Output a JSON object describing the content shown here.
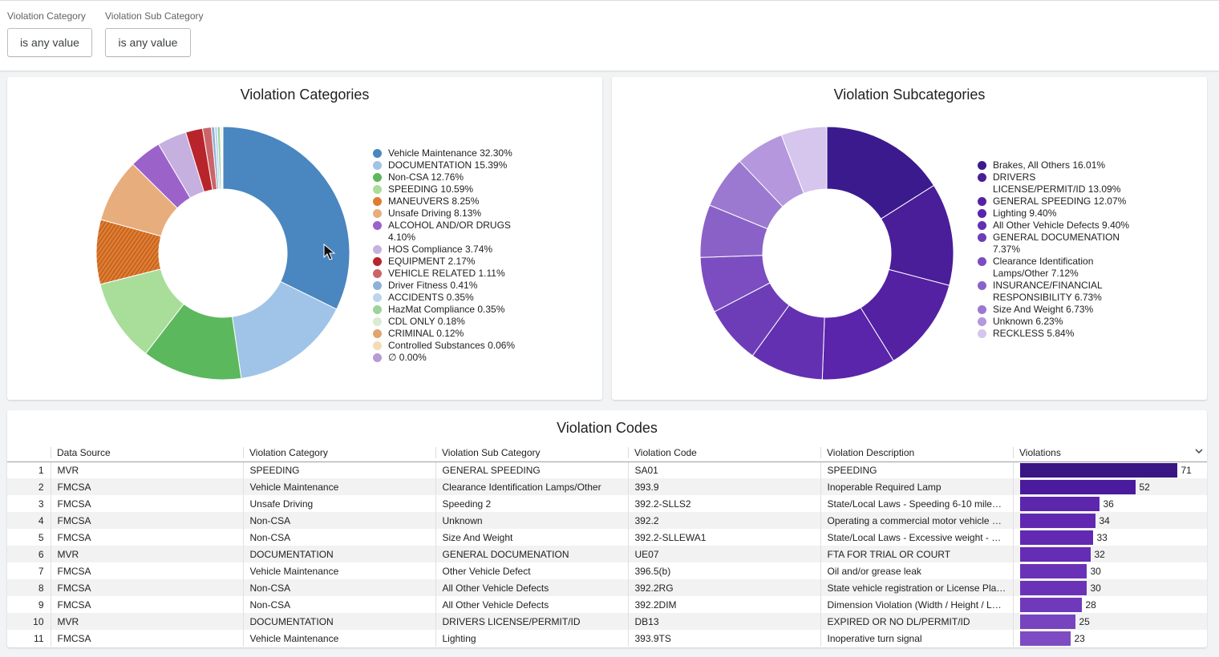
{
  "filters": [
    {
      "label": "Violation Category",
      "value": "is any value"
    },
    {
      "label": "Violation Sub Category",
      "value": "is any value"
    }
  ],
  "categories_chart": {
    "title": "Violation Categories",
    "legend": [
      {
        "label": "Vehicle Maintenance 32.30%",
        "color": "#4a86c0"
      },
      {
        "label": "DOCUMENTATION 15.39%",
        "color": "#9fc4e7"
      },
      {
        "label": "Non-CSA 12.76%",
        "color": "#5cb85c"
      },
      {
        "label": "SPEEDING 10.59%",
        "color": "#a8dd9a"
      },
      {
        "label": "MANEUVERS 8.25%",
        "color": "#e07c30"
      },
      {
        "label": "Unsafe Driving 8.13%",
        "color": "#e8ad7c"
      },
      {
        "label": "ALCOHOL AND/OR DRUGS 4.10%",
        "color": "#9b63c9"
      },
      {
        "label": "HOS Compliance 3.74%",
        "color": "#c5b0df"
      },
      {
        "label": "EQUIPMENT 2.17%",
        "color": "#b8242b"
      },
      {
        "label": "VEHICLE RELATED 1.11%",
        "color": "#cc6467"
      },
      {
        "label": "Driver Fitness 0.41%",
        "color": "#8fb1d9"
      },
      {
        "label": "ACCIDENTS 0.35%",
        "color": "#bcd4ee"
      },
      {
        "label": "HazMat Compliance 0.35%",
        "color": "#9bd39a"
      },
      {
        "label": "CDL ONLY 0.18%",
        "color": "#d9ecd2"
      },
      {
        "label": "CRIMINAL 0.12%",
        "color": "#e2a46f"
      },
      {
        "label": "Controlled Substances 0.06%",
        "color": "#f3dcb4"
      },
      {
        "label": "∅ 0.00%",
        "color": "#b79ad8"
      }
    ]
  },
  "subcategories_chart": {
    "title": "Violation Subcategories",
    "legend": [
      {
        "label": "Brakes, All Others 16.01%",
        "color": "#3b1a8e"
      },
      {
        "label": "DRIVERS LICENSE/PERMIT/ID 13.09%",
        "color": "#4a1d99"
      },
      {
        "label": "GENERAL SPEEDING 12.07%",
        "color": "#5421a3"
      },
      {
        "label": "Lighting 9.40%",
        "color": "#5a24ab"
      },
      {
        "label": "All Other Vehicle Defects 9.40%",
        "color": "#6330b2"
      },
      {
        "label": "GENERAL DOCUMENATION 7.37%",
        "color": "#6d3db8"
      },
      {
        "label": "Clearance Identification Lamps/Other 7.12%",
        "color": "#7b4dc0"
      },
      {
        "label": "INSURANCE/FINANCIAL RESPONSIBILITY 6.73%",
        "color": "#8a62c7"
      },
      {
        "label": "Size And Weight 6.73%",
        "color": "#9b79d0"
      },
      {
        "label": "Unknown 6.23%",
        "color": "#b597dd"
      },
      {
        "label": "RECKLESS 5.84%",
        "color": "#d6c5ec"
      }
    ]
  },
  "codes_table": {
    "title": "Violation Codes",
    "columns": [
      "Data Source",
      "Violation Category",
      "Violation Sub Category",
      "Violation Code",
      "Violation Description",
      "Violations"
    ],
    "sort_icon": "chevron-down-icon",
    "max_violations": 71,
    "rows": [
      {
        "n": "1",
        "source": "MVR",
        "category": "SPEEDING",
        "sub": "GENERAL SPEEDING",
        "code": "SA01",
        "desc": "SPEEDING",
        "violations": 71,
        "color": "#3a1584"
      },
      {
        "n": "2",
        "source": "FMCSA",
        "category": "Vehicle Maintenance",
        "sub": "Clearance Identification Lamps/Other",
        "code": "393.9",
        "desc": "Inoperable Required Lamp",
        "violations": 52,
        "color": "#4a1b9c"
      },
      {
        "n": "3",
        "source": "FMCSA",
        "category": "Unsafe Driving",
        "sub": "Speeding 2",
        "code": "392.2-SLLS2",
        "desc": "State/Local Laws - Speeding 6-10 miles …",
        "violations": 36,
        "color": "#5c26ad"
      },
      {
        "n": "4",
        "source": "FMCSA",
        "category": "Non-CSA",
        "sub": "Unknown",
        "code": "392.2",
        "desc": "Operating a commercial motor vehicle n…",
        "violations": 34,
        "color": "#6028b0"
      },
      {
        "n": "5",
        "source": "FMCSA",
        "category": "Non-CSA",
        "sub": "Size And Weight",
        "code": "392.2-SLLEWA1",
        "desc": "State/Local Laws - Excessive weight - 1-…",
        "violations": 33,
        "color": "#622ab2"
      },
      {
        "n": "6",
        "source": "MVR",
        "category": "DOCUMENTATION",
        "sub": "GENERAL DOCUMENATION",
        "code": "UE07",
        "desc": "FTA FOR TRIAL OR COURT",
        "violations": 32,
        "color": "#652db4"
      },
      {
        "n": "7",
        "source": "FMCSA",
        "category": "Vehicle Maintenance",
        "sub": "Other Vehicle Defect",
        "code": "396.5(b)",
        "desc": "Oil and/or grease leak",
        "violations": 30,
        "color": "#6a33b7"
      },
      {
        "n": "8",
        "source": "FMCSA",
        "category": "Non-CSA",
        "sub": "All Other Vehicle Defects",
        "code": "392.2RG",
        "desc": "State vehicle registration or License Plat…",
        "violations": 30,
        "color": "#6a33b7"
      },
      {
        "n": "9",
        "source": "FMCSA",
        "category": "Non-CSA",
        "sub": "All Other Vehicle Defects",
        "code": "392.2DIM",
        "desc": "Dimension Violation (Width / Height / L…",
        "violations": 28,
        "color": "#7039ba"
      },
      {
        "n": "10",
        "source": "MVR",
        "category": "DOCUMENTATION",
        "sub": "DRIVERS LICENSE/PERMIT/ID",
        "code": "DB13",
        "desc": "EXPIRED OR NO DL/PERMIT/ID",
        "violations": 25,
        "color": "#7843bf"
      },
      {
        "n": "11",
        "source": "FMCSA",
        "category": "Vehicle Maintenance",
        "sub": "Lighting",
        "code": "393.9TS",
        "desc": "Inoperative turn signal",
        "violations": 23,
        "color": "#7e4bc2"
      }
    ]
  }
}
